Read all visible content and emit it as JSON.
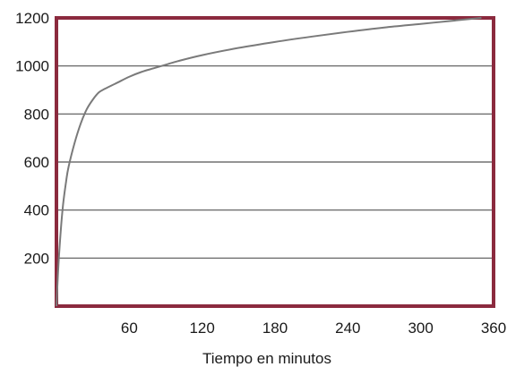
{
  "chart_data": {
    "type": "line",
    "title": "",
    "xlabel": "Tiempo en minutos",
    "ylabel": "",
    "xlim": [
      0,
      360
    ],
    "ylim": [
      0,
      1200
    ],
    "x_ticks": [
      60,
      120,
      180,
      240,
      300,
      360
    ],
    "y_ticks": [
      200,
      400,
      600,
      800,
      1000,
      1200
    ],
    "grid": "horizontal",
    "legend": "none",
    "colors": {
      "frame": "#8b2a3e",
      "line": "#7a7a7a",
      "grid": "#555555",
      "text": "#1a1a1a"
    },
    "series": [
      {
        "x": [
          0,
          2,
          5,
          8,
          10,
          15,
          20,
          25,
          30,
          35,
          40,
          50,
          60,
          70,
          80,
          90,
          100,
          120,
          150,
          180,
          210,
          240,
          270,
          300,
          330,
          350
        ],
        "y": [
          0,
          200,
          400,
          520,
          580,
          680,
          760,
          820,
          860,
          890,
          905,
          930,
          955,
          975,
          990,
          1005,
          1020,
          1045,
          1075,
          1100,
          1122,
          1142,
          1160,
          1175,
          1190,
          1200
        ]
      }
    ]
  }
}
